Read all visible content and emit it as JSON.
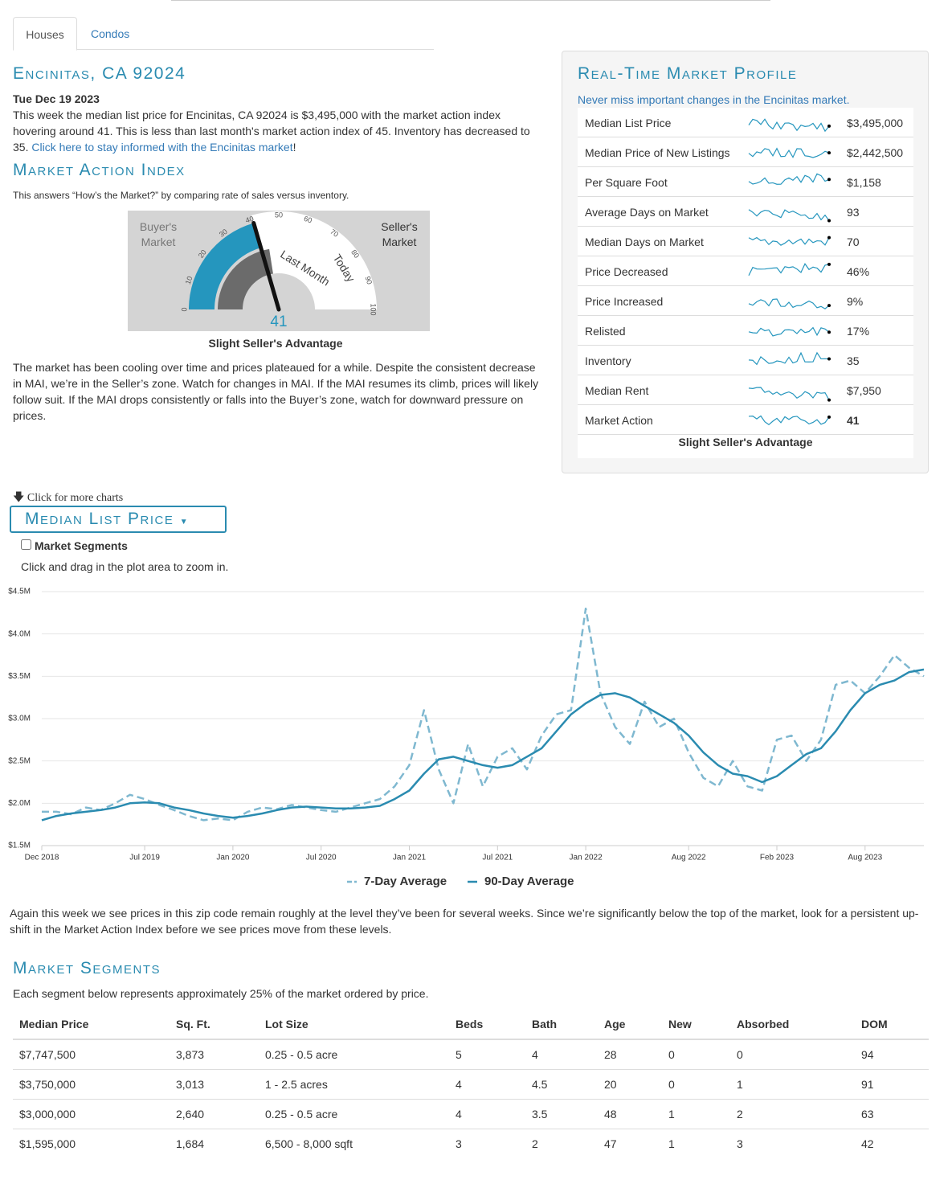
{
  "tabs": [
    "Houses",
    "Condos"
  ],
  "header": {
    "title": "Encinitas, CA 92024",
    "date": "Tue Dec 19 2023",
    "intro": "This week the median list price for Encinitas, CA 92024 is $3,495,000 with the market action index hovering around 41. This is less than last month's market action index of 45. Inventory has decreased to 35. ",
    "link": "Click here to stay informed with the Encinitas market",
    "intro_end": "!"
  },
  "mai": {
    "title": "Market Action Index",
    "subtitle": "This answers “How’s the Market?” by comparing rate of sales versus inventory.",
    "buyer": "Buyer's Market",
    "seller": "Seller's Market",
    "last_month_label": "Last Month",
    "today_label": "Today",
    "value": 41,
    "last_month": 45,
    "ticks": [
      0,
      10,
      20,
      30,
      40,
      50,
      60,
      70,
      80,
      90,
      100
    ],
    "caption": "Slight Seller's Advantage",
    "text": "The market has been cooling over time and prices plateaued for a while. Despite the consistent decrease in MAI, we’re in the Seller’s zone. Watch for changes in MAI. If the MAI resumes its climb, prices will likely follow suit. If the MAI drops consistently or falls into the Buyer’s zone, watch for downward pressure on prices."
  },
  "profile": {
    "title": "Real-Time Market Profile",
    "subtitle": "Never miss important changes in the Encinitas market.",
    "rows": [
      {
        "label": "Median List Price",
        "value": "$3,495,000"
      },
      {
        "label": "Median Price of New Listings",
        "value": "$2,442,500"
      },
      {
        "label": "Per Square Foot",
        "value": "$1,158"
      },
      {
        "label": "Average Days on Market",
        "value": "93"
      },
      {
        "label": "Median Days on Market",
        "value": "70"
      },
      {
        "label": "Price Decreased",
        "value": "46%"
      },
      {
        "label": "Price Increased",
        "value": "9%"
      },
      {
        "label": "Relisted",
        "value": "17%"
      },
      {
        "label": "Inventory",
        "value": "35"
      },
      {
        "label": "Median Rent",
        "value": "$7,950"
      },
      {
        "label": "Market Action",
        "value": "41"
      }
    ],
    "caption": "Slight Seller's Advantage"
  },
  "controls": {
    "more": "Click for more charts",
    "dropdown": "Median List Price",
    "checkbox": "Market Segments",
    "hint": "Click and drag in the plot area to zoom in."
  },
  "chart_data": {
    "type": "line",
    "x": [
      "2018-12",
      "2019-01",
      "2019-02",
      "2019-03",
      "2019-04",
      "2019-05",
      "2019-06",
      "2019-07",
      "2019-08",
      "2019-09",
      "2019-10",
      "2019-11",
      "2019-12",
      "2020-01",
      "2020-02",
      "2020-03",
      "2020-04",
      "2020-05",
      "2020-06",
      "2020-07",
      "2020-08",
      "2020-09",
      "2020-10",
      "2020-11",
      "2020-12",
      "2021-01",
      "2021-02",
      "2021-03",
      "2021-04",
      "2021-05",
      "2021-06",
      "2021-07",
      "2021-08",
      "2021-09",
      "2021-10",
      "2021-11",
      "2021-12",
      "2022-01",
      "2022-02",
      "2022-03",
      "2022-04",
      "2022-05",
      "2022-06",
      "2022-07",
      "2022-08",
      "2022-09",
      "2022-10",
      "2022-11",
      "2022-12",
      "2023-01",
      "2023-02",
      "2023-03",
      "2023-04",
      "2023-05",
      "2023-06",
      "2023-07",
      "2023-08",
      "2023-09",
      "2023-10",
      "2023-11",
      "2023-12"
    ],
    "series": [
      {
        "name": "7-Day Average",
        "color": "#7fb8d0",
        "dashed": true,
        "values": [
          1900000,
          1900000,
          1870000,
          1950000,
          1920000,
          2000000,
          2100000,
          2050000,
          1980000,
          1920000,
          1850000,
          1800000,
          1820000,
          1800000,
          1900000,
          1950000,
          1930000,
          1980000,
          1950000,
          1920000,
          1900000,
          1950000,
          2000000,
          2050000,
          2200000,
          2450000,
          3100000,
          2400000,
          2000000,
          2700000,
          2200000,
          2550000,
          2650000,
          2400000,
          2800000,
          3050000,
          3100000,
          4300000,
          3300000,
          2900000,
          2700000,
          3200000,
          2900000,
          3000000,
          2600000,
          2300000,
          2200000,
          2500000,
          2200000,
          2150000,
          2750000,
          2800000,
          2500000,
          2750000,
          3400000,
          3450000,
          3300000,
          3500000,
          3750000,
          3600000,
          3500000
        ]
      },
      {
        "name": "90-Day Average",
        "color": "#2a8bb0",
        "dashed": false,
        "values": [
          1800000,
          1850000,
          1880000,
          1900000,
          1920000,
          1950000,
          2000000,
          2010000,
          2000000,
          1950000,
          1920000,
          1880000,
          1850000,
          1830000,
          1850000,
          1880000,
          1920000,
          1950000,
          1960000,
          1950000,
          1940000,
          1940000,
          1950000,
          1970000,
          2050000,
          2150000,
          2350000,
          2520000,
          2550000,
          2500000,
          2450000,
          2420000,
          2450000,
          2550000,
          2650000,
          2850000,
          3050000,
          3180000,
          3280000,
          3300000,
          3250000,
          3150000,
          3050000,
          2950000,
          2800000,
          2600000,
          2450000,
          2350000,
          2320000,
          2250000,
          2320000,
          2450000,
          2580000,
          2650000,
          2850000,
          3100000,
          3300000,
          3400000,
          3450000,
          3550000,
          3580000
        ]
      }
    ],
    "xlim": [
      "2018-12",
      "2023-12"
    ],
    "xticks": [
      {
        "value": "2018-12",
        "label": "Dec 2018"
      },
      {
        "value": "2019-07",
        "label": "Jul 2019"
      },
      {
        "value": "2020-01",
        "label": "Jan 2020"
      },
      {
        "value": "2020-07",
        "label": "Jul 2020"
      },
      {
        "value": "2021-01",
        "label": "Jan 2021"
      },
      {
        "value": "2021-07",
        "label": "Jul 2021"
      },
      {
        "value": "2022-01",
        "label": "Jan 2022"
      },
      {
        "value": "2022-08",
        "label": "Aug 2022"
      },
      {
        "value": "2023-02",
        "label": "Feb 2023"
      },
      {
        "value": "2023-08",
        "label": "Aug 2023"
      }
    ],
    "ylim": [
      1500000,
      4500000
    ],
    "yticks": [
      {
        "value": 1500000,
        "label": "$1.5M"
      },
      {
        "value": 2000000,
        "label": "$2.0M"
      },
      {
        "value": 2500000,
        "label": "$2.5M"
      },
      {
        "value": 3000000,
        "label": "$3.0M"
      },
      {
        "value": 3500000,
        "label": "$3.5M"
      },
      {
        "value": 4000000,
        "label": "$4.0M"
      },
      {
        "value": 4500000,
        "label": "$4.5M"
      }
    ],
    "grid": true
  },
  "commentary": "Again this week we see prices in this zip code remain roughly at the level they’ve been for several weeks. Since we’re significantly below the top of the market, look for a persistent up-shift in the Market Action Index before we see prices move from these levels.",
  "segments": {
    "title": "Market Segments",
    "subtitle": "Each segment below represents approximately 25% of the market ordered by price.",
    "headers": [
      "Median Price",
      "Sq. Ft.",
      "Lot Size",
      "Beds",
      "Bath",
      "Age",
      "New",
      "Absorbed",
      "DOM"
    ],
    "rows": [
      [
        "$7,747,500",
        "3,873",
        "0.25 - 0.5 acre",
        "5",
        "4",
        "28",
        "0",
        "0",
        "94"
      ],
      [
        "$3,750,000",
        "3,013",
        "1 - 2.5 acres",
        "4",
        "4.5",
        "20",
        "0",
        "1",
        "91"
      ],
      [
        "$3,000,000",
        "2,640",
        "0.25 - 0.5 acre",
        "4",
        "3.5",
        "48",
        "1",
        "2",
        "63"
      ],
      [
        "$1,595,000",
        "1,684",
        "6,500 - 8,000 sqft",
        "3",
        "2",
        "47",
        "1",
        "3",
        "42"
      ]
    ]
  }
}
